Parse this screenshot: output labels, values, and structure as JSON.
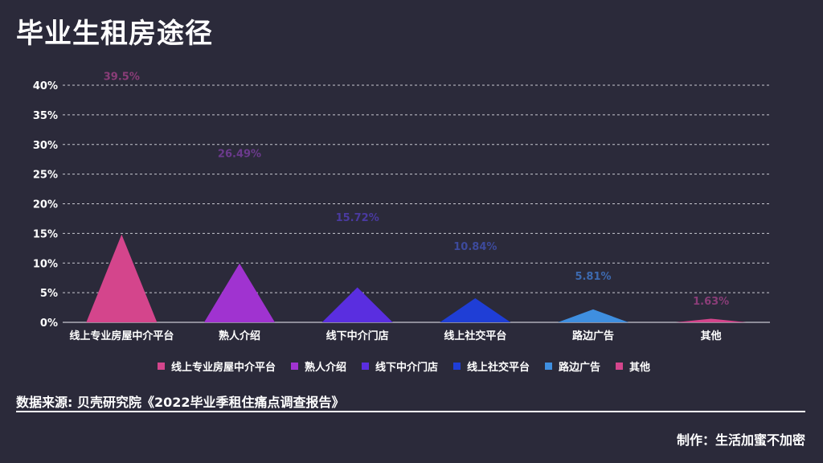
{
  "title": "毕业生租房途径",
  "source": "数据来源: 贝壳研究院《2022毕业季租住痛点调查报告》",
  "credit": "制作：生活加蜜不加密",
  "chart_data": {
    "type": "bar",
    "shape": "triangle",
    "categories": [
      "线上专业房屋中介平台",
      "熟人介绍",
      "线下中介门店",
      "线上社交平台",
      "路边广告",
      "其他"
    ],
    "values": [
      39.5,
      26.49,
      15.72,
      10.84,
      5.81,
      1.63
    ],
    "value_labels": [
      "39.5%",
      "26.49%",
      "15.72%",
      "10.84%",
      "5.81%",
      "1.63%"
    ],
    "colors": [
      "#d4458c",
      "#a033d0",
      "#5a2ee0",
      "#1f3ed6",
      "#3f8fe0",
      "#d4458c"
    ],
    "label_colors": [
      "#8a3d78",
      "#6b3a8c",
      "#4a3aa0",
      "#3d4a9c",
      "#3d6ab0",
      "#8a3d78"
    ],
    "yticks": [
      "0%",
      "5%",
      "10%",
      "15%",
      "20%",
      "25%",
      "30%",
      "35%",
      "40%"
    ],
    "ylim": [
      0,
      40
    ],
    "grid": true,
    "legend_position": "bottom",
    "xlabel": "",
    "ylabel": ""
  }
}
